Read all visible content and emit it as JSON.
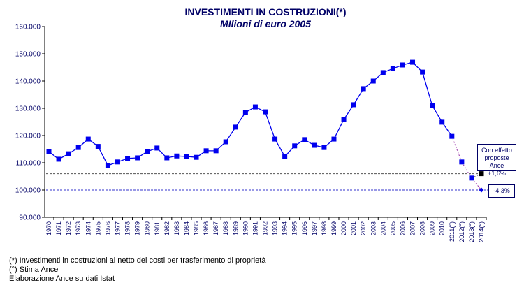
{
  "chart_data": {
    "type": "line",
    "title": "INVESTIMENTI  IN  COSTRUZIONI(*)",
    "subtitle": "MIlioni di euro 2005",
    "xlabel": "",
    "ylabel": "",
    "ylim": [
      90000,
      160000
    ],
    "yticks": [
      "90.000",
      "100.000",
      "110.000",
      "120.000",
      "130.000",
      "140.000",
      "150.000",
      "160.000"
    ],
    "ytick_values": [
      90000,
      100000,
      110000,
      120000,
      130000,
      140000,
      150000,
      160000
    ],
    "categories": [
      "1970",
      "1971",
      "1972",
      "1973",
      "1974",
      "1975",
      "1976",
      "1977",
      "1978",
      "1979",
      "1980",
      "1981",
      "1982",
      "1983",
      "1984",
      "1985",
      "1986",
      "1987",
      "1988",
      "1989",
      "1990",
      "1991",
      "1992",
      "1993",
      "1994",
      "1995",
      "1996",
      "1997",
      "1998",
      "1999",
      "2000",
      "2001",
      "2002",
      "2003",
      "2004",
      "2005",
      "2006",
      "2007",
      "2008",
      "2009",
      "2010",
      "2011(°)",
      "2012(°)",
      "2013(°)",
      "2014(°)"
    ],
    "series": [
      {
        "name": "Investimenti in costruzioni",
        "color": "#0000ee",
        "values": [
          114100,
          111300,
          113300,
          115600,
          118700,
          116000,
          109000,
          110300,
          111600,
          111800,
          114100,
          115400,
          111800,
          112500,
          112300,
          112000,
          114400,
          114400,
          117700,
          123100,
          128500,
          130500,
          128700,
          118700,
          112300,
          116200,
          118500,
          116400,
          115600,
          118700,
          125900,
          131300,
          137200,
          140000,
          143100,
          144600,
          145900,
          146900,
          143300,
          131000,
          124900,
          119700,
          110300,
          104400,
          100000
        ]
      }
    ],
    "reference_lines": [
      {
        "name": "Con effetto proposte Ance",
        "value": 106000,
        "color": "#555555"
      },
      {
        "name": "Stima",
        "value": 100000,
        "color": "#3333cc"
      }
    ],
    "alt_point": {
      "category": "2014(°)",
      "value": 106000,
      "color": "#000000"
    },
    "annotations": [
      {
        "text_lines": [
          "Con effetto",
          "proposte Ance",
          "+1,6%"
        ]
      },
      {
        "text_lines": [
          "-4,3%"
        ]
      }
    ],
    "grid": false,
    "legend": "none"
  },
  "notes": [
    "(*) Investimenti in costruzioni al netto dei costi per trasferimento di proprietà",
    "(°) Stima Ance",
    "Elaborazione Ance su dati Istat"
  ]
}
